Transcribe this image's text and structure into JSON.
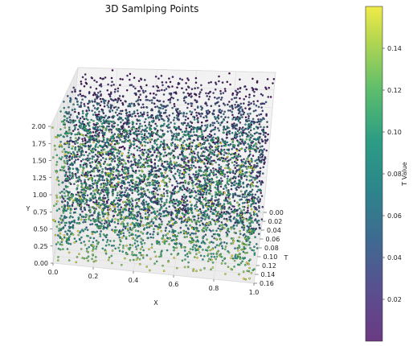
{
  "chart_data": {
    "type": "scatter",
    "projection": "3d",
    "title": "3D Samlping Points",
    "xlabel": "X",
    "ylabel": "Y",
    "zlabel": "T",
    "x_ticks": [
      "0.0",
      "0.2",
      "0.4",
      "0.6",
      "0.8",
      "1.0"
    ],
    "y_ticks": [
      "0.00",
      "0.25",
      "0.50",
      "0.75",
      "1.00",
      "1.25",
      "1.50",
      "1.75",
      "2.00"
    ],
    "t_ticks": [
      "0.00",
      "0.02",
      "0.04",
      "0.06",
      "0.08",
      "0.10",
      "0.12",
      "0.14",
      "0.16"
    ],
    "xlim": [
      0,
      1
    ],
    "ylim": [
      0,
      2
    ],
    "tlim": [
      0,
      0.16
    ],
    "colormap": "viridis",
    "colorbar": {
      "label": "T Value",
      "ticks": [
        "0.02",
        "0.04",
        "0.06",
        "0.08",
        "0.10",
        "0.12",
        "0.14"
      ],
      "range": [
        0,
        0.16
      ]
    },
    "points_description": "uniform random samples over X in [0,1], Y in [0,2], T in [0,0.16], colored by T"
  }
}
